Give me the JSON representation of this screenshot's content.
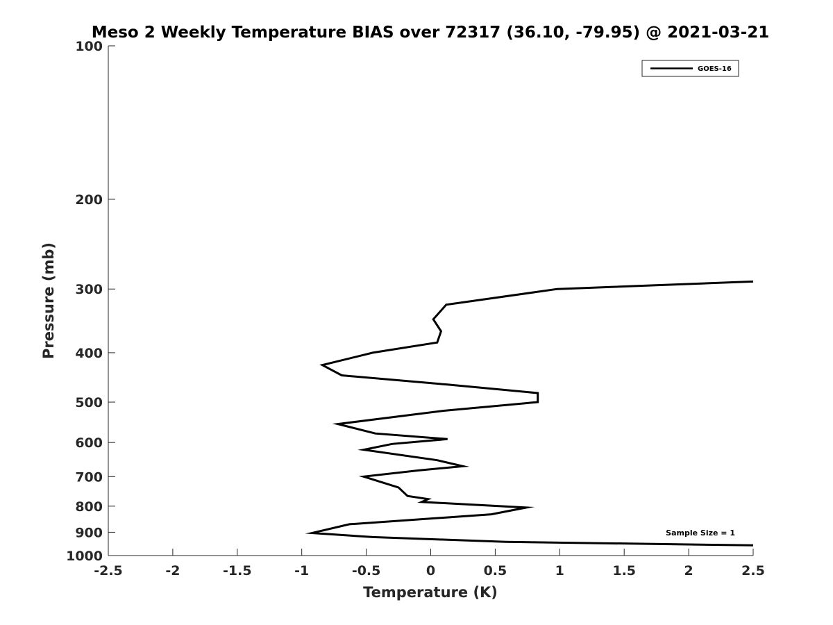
{
  "chart_data": {
    "type": "line",
    "title": "Meso 2 Weekly Temperature BIAS over 72317 (36.10, -79.95) @ 2021-03-21",
    "xlabel": "Temperature (K)",
    "ylabel": "Pressure (mb)",
    "xlim": [
      -2.5,
      2.5
    ],
    "ylim": [
      100,
      1000
    ],
    "y_scale": "log",
    "y_reversed": true,
    "x_ticks": [
      "-2.5",
      "-2",
      "-1.5",
      "-1",
      "-0.5",
      "0",
      "0.5",
      "1",
      "1.5",
      "2",
      "2.5"
    ],
    "y_ticks": [
      "100",
      "200",
      "300",
      "400",
      "500",
      "600",
      "700",
      "800",
      "900",
      "1000"
    ],
    "grid": false,
    "legend_position": "top-right",
    "annotation": "Sample Size = 1",
    "series": [
      {
        "name": "GOES-16",
        "color": "#000000",
        "points": [
          {
            "x": 2.5,
            "p": 290
          },
          {
            "x": 0.98,
            "p": 300
          },
          {
            "x": 0.12,
            "p": 322
          },
          {
            "x": 0.02,
            "p": 344
          },
          {
            "x": 0.08,
            "p": 363
          },
          {
            "x": 0.05,
            "p": 382
          },
          {
            "x": -0.45,
            "p": 400
          },
          {
            "x": -0.84,
            "p": 423
          },
          {
            "x": -0.69,
            "p": 443
          },
          {
            "x": 0.13,
            "p": 462
          },
          {
            "x": 0.83,
            "p": 480
          },
          {
            "x": 0.83,
            "p": 500
          },
          {
            "x": 0.1,
            "p": 520
          },
          {
            "x": -0.72,
            "p": 552
          },
          {
            "x": -0.43,
            "p": 576
          },
          {
            "x": 0.13,
            "p": 591
          },
          {
            "x": -0.3,
            "p": 604
          },
          {
            "x": -0.52,
            "p": 620
          },
          {
            "x": 0.05,
            "p": 650
          },
          {
            "x": 0.25,
            "p": 668
          },
          {
            "x": -0.1,
            "p": 681
          },
          {
            "x": -0.52,
            "p": 700
          },
          {
            "x": -0.25,
            "p": 735
          },
          {
            "x": -0.18,
            "p": 764
          },
          {
            "x": -0.02,
            "p": 775
          },
          {
            "x": -0.07,
            "p": 785
          },
          {
            "x": 0.74,
            "p": 805
          },
          {
            "x": 0.47,
            "p": 830
          },
          {
            "x": -0.63,
            "p": 868
          },
          {
            "x": -0.92,
            "p": 903
          },
          {
            "x": -0.45,
            "p": 920
          },
          {
            "x": 0.58,
            "p": 940
          },
          {
            "x": 2.5,
            "p": 955
          }
        ]
      }
    ]
  }
}
